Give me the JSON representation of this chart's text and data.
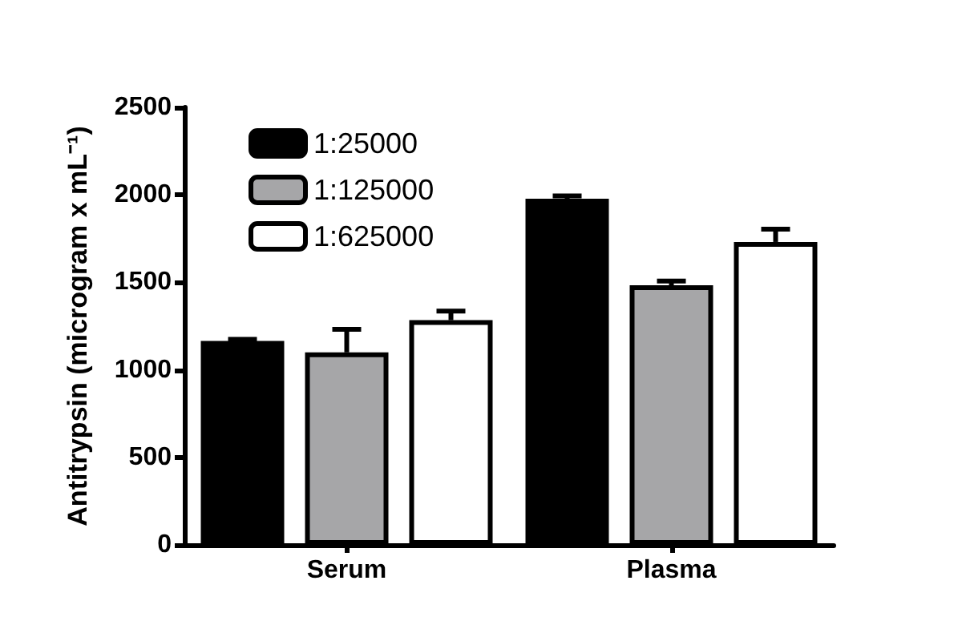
{
  "chart_data": {
    "type": "bar",
    "ylabel": "Antitrypsin (microgram x mL⁻¹)",
    "categories": [
      "Serum",
      "Plasma"
    ],
    "series": [
      {
        "name": "1:25000",
        "color": "#000000",
        "values": [
          1165,
          1978
        ],
        "errors": [
          [
            1165,
            1175
          ],
          [
            1978,
            1994
          ]
        ]
      },
      {
        "name": "1:125000",
        "color": "#a6a6a8",
        "values": [
          1100,
          1483
        ],
        "errors": [
          [
            1100,
            1232
          ],
          [
            1483,
            1508
          ]
        ]
      },
      {
        "name": "1:625000",
        "color": "#ffffff",
        "values": [
          1284,
          1731
        ],
        "errors": [
          [
            1284,
            1336
          ],
          [
            1731,
            1804
          ]
        ]
      }
    ],
    "ylim": [
      0,
      2500
    ],
    "yticks": [
      0,
      500,
      1000,
      1500,
      2000,
      2500
    ],
    "grid": false,
    "legend": "top left"
  }
}
